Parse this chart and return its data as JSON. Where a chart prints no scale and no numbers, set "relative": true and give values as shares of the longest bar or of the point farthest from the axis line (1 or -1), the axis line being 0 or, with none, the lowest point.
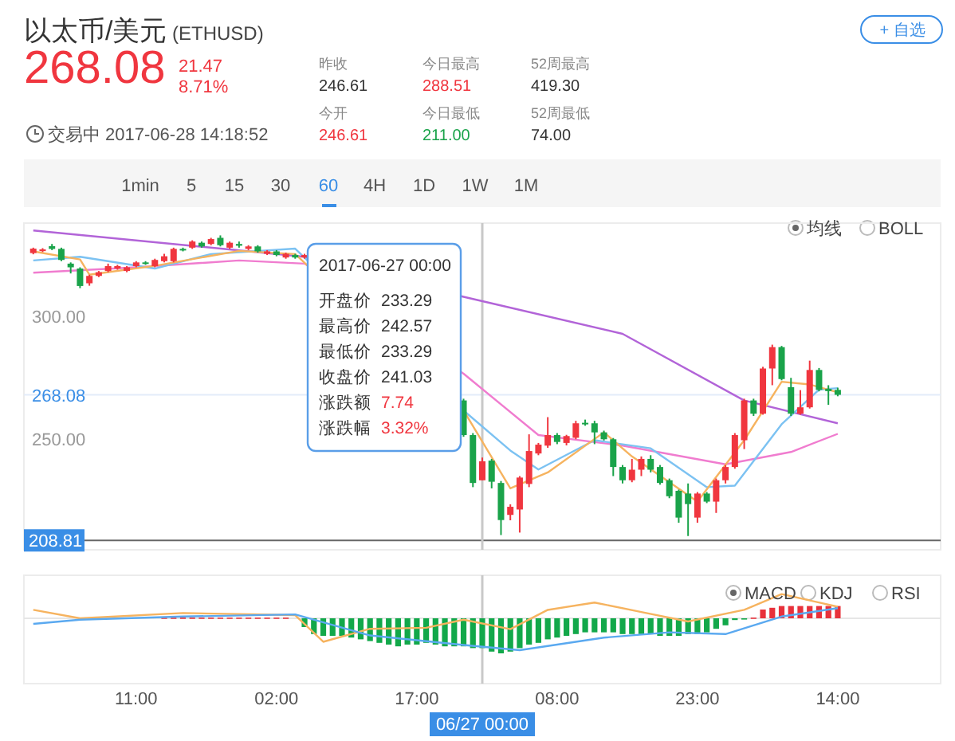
{
  "chart_data": [
    {
      "type": "candlestick",
      "title": "以太币/美元",
      "subtitle": "(ETHUSD)",
      "x": [
        "2017-06-25T00:00",
        "2017-06-25T01:00",
        "2017-06-25T02:00",
        "2017-06-25T03:00",
        "2017-06-25T04:00",
        "2017-06-25T05:00",
        "2017-06-25T06:00",
        "2017-06-25T07:00",
        "2017-06-25T08:00",
        "2017-06-25T09:00",
        "2017-06-25T10:00",
        "2017-06-25T11:00",
        "2017-06-25T12:00",
        "2017-06-25T13:00",
        "2017-06-25T14:00",
        "2017-06-25T15:00",
        "2017-06-25T16:00",
        "2017-06-25T17:00",
        "2017-06-25T18:00",
        "2017-06-25T19:00",
        "2017-06-25T20:00",
        "2017-06-25T21:00",
        "2017-06-25T22:00",
        "2017-06-25T23:00",
        "2017-06-26T00:00",
        "2017-06-26T01:00",
        "2017-06-26T02:00",
        "2017-06-26T03:00",
        "2017-06-26T04:00",
        "2017-06-26T05:00",
        "2017-06-26T22:00",
        "2017-06-26T23:00",
        "2017-06-27T00:00",
        "2017-06-27T01:00",
        "2017-06-27T02:00",
        "2017-06-27T03:00",
        "2017-06-27T04:00",
        "2017-06-27T05:00",
        "2017-06-27T06:00",
        "2017-06-27T07:00",
        "2017-06-27T08:00",
        "2017-06-27T09:00",
        "2017-06-27T10:00",
        "2017-06-27T11:00",
        "2017-06-27T12:00",
        "2017-06-27T13:00",
        "2017-06-27T14:00",
        "2017-06-27T15:00",
        "2017-06-27T16:00",
        "2017-06-27T17:00",
        "2017-06-27T18:00",
        "2017-06-27T19:00",
        "2017-06-27T20:00",
        "2017-06-27T21:00",
        "2017-06-27T22:00",
        "2017-06-27T23:00",
        "2017-06-28T00:00",
        "2017-06-28T01:00",
        "2017-06-28T02:00",
        "2017-06-28T03:00",
        "2017-06-28T04:00",
        "2017-06-28T05:00",
        "2017-06-28T06:00",
        "2017-06-28T07:00",
        "2017-06-28T08:00",
        "2017-06-28T09:00",
        "2017-06-28T10:00",
        "2017-06-28T11:00",
        "2017-06-28T12:00",
        "2017-06-28T13:00",
        "2017-06-28T14:00"
      ],
      "ohlc": [
        [
          325.8,
          328.0,
          325.3,
          327.6
        ],
        [
          326.6,
          327.8,
          326.2,
          327.3
        ],
        [
          328.6,
          329.5,
          327.0,
          327.5
        ],
        [
          327.5,
          328.0,
          322.5,
          323.0
        ],
        [
          321.5,
          322.0,
          317.5,
          320.0
        ],
        [
          319.5,
          320.0,
          311.5,
          312.4
        ],
        [
          313.5,
          317.0,
          312.5,
          316.5
        ],
        [
          316.5,
          318.5,
          316.0,
          318.0
        ],
        [
          318.5,
          321.5,
          318.0,
          320.5
        ],
        [
          319.5,
          321.0,
          319.0,
          320.5
        ],
        [
          318.5,
          320.5,
          318.0,
          320.0
        ],
        [
          320.5,
          322.5,
          320.0,
          322.0
        ],
        [
          322.0,
          322.5,
          321.0,
          321.5
        ],
        [
          320.5,
          323.5,
          320.0,
          323.0
        ],
        [
          322.5,
          325.5,
          322.0,
          324.5
        ],
        [
          322.5,
          328.0,
          322.0,
          327.5
        ],
        [
          327.5,
          328.0,
          326.5,
          327.0
        ],
        [
          328.0,
          331.0,
          327.5,
          330.5
        ],
        [
          330.0,
          330.5,
          328.0,
          328.5
        ],
        [
          329.5,
          332.0,
          329.0,
          331.5
        ],
        [
          332.0,
          333.0,
          328.5,
          329.0
        ],
        [
          328.0,
          330.5,
          327.5,
          330.0
        ],
        [
          329.5,
          330.5,
          328.0,
          328.8
        ],
        [
          327.5,
          329.0,
          327.0,
          328.5
        ],
        [
          328.5,
          329.0,
          326.0,
          326.5
        ],
        [
          325.5,
          327.0,
          325.0,
          326.5
        ],
        [
          326.5,
          327.0,
          324.5,
          325.0
        ],
        [
          324.0,
          326.0,
          323.5,
          325.5
        ],
        [
          325.0,
          325.5,
          323.5,
          324.0
        ],
        [
          324.0,
          325.5,
          323.5,
          325.0
        ],
        [
          265.8,
          266.5,
          251.0,
          251.7
        ],
        [
          251.7,
          252.5,
          230.5,
          232.2
        ],
        [
          233.29,
          242.57,
          233.29,
          241.03
        ],
        [
          241.3,
          242.0,
          230.0,
          232.7
        ],
        [
          232.2,
          233.0,
          211.0,
          217.1
        ],
        [
          219.2,
          223.5,
          217.0,
          222.5
        ],
        [
          221.4,
          235.0,
          212.0,
          234.4
        ],
        [
          231.8,
          252.0,
          230.5,
          245.2
        ],
        [
          244.2,
          248.5,
          243.5,
          247.8
        ],
        [
          247.4,
          259.0,
          246.5,
          251.7
        ],
        [
          251.7,
          252.5,
          248.0,
          248.9
        ],
        [
          248.5,
          251.8,
          247.5,
          251.3
        ],
        [
          250.6,
          257.5,
          250.0,
          256.5
        ],
        [
          256.7,
          258.0,
          255.5,
          256.1
        ],
        [
          256.5,
          257.5,
          248.0,
          252.8
        ],
        [
          252.8,
          253.5,
          249.5,
          250.0
        ],
        [
          250.0,
          250.5,
          235.0,
          238.7
        ],
        [
          238.7,
          239.5,
          232.0,
          233.3
        ],
        [
          233.3,
          242.0,
          232.5,
          237.6
        ],
        [
          237.6,
          243.0,
          235.0,
          242.0
        ],
        [
          242.0,
          243.5,
          236.5,
          237.6
        ],
        [
          238.7,
          239.5,
          231.5,
          232.2
        ],
        [
          233.3,
          234.0,
          226.0,
          226.8
        ],
        [
          229.0,
          229.5,
          216.0,
          218.1
        ],
        [
          227.9,
          232.0,
          210.6,
          223.6
        ],
        [
          218.1,
          228.5,
          216.0,
          227.9
        ],
        [
          227.9,
          228.5,
          224.0,
          224.6
        ],
        [
          224.6,
          234.0,
          220.0,
          233.3
        ],
        [
          233.3,
          239.5,
          232.0,
          238.7
        ],
        [
          238.7,
          252.5,
          238.0,
          251.7
        ],
        [
          249.6,
          266.5,
          246.0,
          265.8
        ],
        [
          265.8,
          266.5,
          259.5,
          260.4
        ],
        [
          260.4,
          279.5,
          260.0,
          278.8
        ],
        [
          278.8,
          288.51,
          272.0,
          287.5
        ],
        [
          287.5,
          288.0,
          274.0,
          274.5
        ],
        [
          271.2,
          275.0,
          259.5,
          260.4
        ],
        [
          260.4,
          270.0,
          260.0,
          263.0
        ],
        [
          263.0,
          282.0,
          262.5,
          278.2
        ],
        [
          278.2,
          279.0,
          269.5,
          270.1
        ],
        [
          270.5,
          272.0,
          264.0,
          269.6
        ],
        [
          270.1,
          271.0,
          267.5,
          268.08
        ]
      ],
      "series": [
        {
          "type": "line",
          "color": "#b264d8",
          "x": [
            "2017-06-25T00:00",
            "2017-06-26T05:00",
            "2017-06-26T22:00",
            "2017-06-27T15:00",
            "2017-06-28T04:00",
            "2017-06-28T14:00"
          ],
          "values": [
            335,
            324.3,
            308,
            292.9,
            265.8,
            256.5
          ]
        },
        {
          "type": "line",
          "color": "#f07ccf",
          "x": [
            "2017-06-25T00:00",
            "2017-06-25T11:00",
            "2017-06-25T22:00",
            "2017-06-26T05:00",
            "2017-06-26T22:00",
            "2017-06-27T06:00",
            "2017-06-27T15:00",
            "2017-06-28T02:00",
            "2017-06-28T09:00",
            "2017-06-28T14:00"
          ],
          "values": [
            317.8,
            320,
            322.8,
            321.5,
            276.7,
            251.7,
            247.4,
            239.8,
            244.8,
            252.2
          ]
        },
        {
          "type": "line",
          "color": "#7cc2f2",
          "x": [
            "2017-06-25T00:00",
            "2017-06-25T05:00",
            "2017-06-25T13:00",
            "2017-06-25T19:00",
            "2017-06-26T04:00",
            "2017-06-26T22:00",
            "2017-06-27T03:00",
            "2017-06-27T06:00",
            "2017-06-27T12:00",
            "2017-06-27T18:00",
            "2017-06-28T00:00",
            "2017-06-28T03:00",
            "2017-06-28T08:00",
            "2017-06-28T12:00",
            "2017-06-28T14:00"
          ],
          "values": [
            322.8,
            324.3,
            319.5,
            325.4,
            327.6,
            261.7,
            245.4,
            237.7,
            249.6,
            246.3,
            230.5,
            231.1,
            256.1,
            270.2,
            270.8
          ]
        },
        {
          "type": "line",
          "color": "#f6b35f",
          "x": [
            "2017-06-25T00:00",
            "2017-06-25T05:00",
            "2017-06-25T06:00",
            "2017-06-25T13:00",
            "2017-06-25T22:00",
            "2017-06-26T04:00",
            "2017-06-26T22:00",
            "2017-06-27T03:00",
            "2017-06-27T07:00",
            "2017-06-27T13:00",
            "2017-06-27T16:00",
            "2017-06-27T23:00",
            "2017-06-28T04:00",
            "2017-06-28T08:00",
            "2017-06-28T11:00",
            "2017-06-28T14:00"
          ],
          "values": [
            326.5,
            323.2,
            317,
            320.6,
            326.7,
            325.4,
            261.7,
            230,
            236.5,
            252.8,
            243,
            224.6,
            249.6,
            273.4,
            272.3,
            269.1
          ]
        }
      ],
      "xlim": [
        "2017-06-24T23:00",
        "2017-06-29T01:00"
      ],
      "ylim": [
        205,
        338
      ],
      "yticks": [
        {
          "value": 300,
          "label": "300.00"
        },
        {
          "value": 250,
          "label": "250.00"
        }
      ],
      "tick_labels": "y",
      "ref_lines": [
        {
          "axis": "y",
          "value": 268.08,
          "label": "268.08",
          "color": "#e3ecfa"
        },
        {
          "axis": "y",
          "value": 208.81,
          "label": "208.81",
          "color": "#666666"
        },
        {
          "axis": "x",
          "value": "2017-06-27T00:00",
          "color": "#c8c8c8"
        }
      ],
      "annotations": [
        "268.08",
        "21.47",
        "8.71%",
        "昨收",
        "246.61",
        "今日最高",
        "288.51",
        "52周最高",
        "419.30",
        "今开",
        "246.61",
        "今日最低",
        "211.00",
        "52周最低",
        "74.00",
        "交易中 2017-06-28 14:18:52",
        "+ 自选",
        "1min",
        "5",
        "15",
        "30",
        "60",
        "4H",
        "1D",
        "1W",
        "1M",
        "均线",
        "BOLL",
        "2017-06-27 00:00",
        "开盘价",
        "233.29",
        "最高价",
        "242.57",
        "最低价",
        "233.29",
        "收盘价",
        "241.03",
        "涨跌额",
        "7.74",
        "涨跌幅",
        "3.32%"
      ]
    },
    {
      "type": "bar",
      "relative": true,
      "series": [
        {
          "color": "#e8313b",
          "x": [
            "2017-06-25T14:00",
            "2017-06-25T15:00",
            "2017-06-25T16:00",
            "2017-06-25T17:00",
            "2017-06-25T18:00",
            "2017-06-25T19:00",
            "2017-06-25T20:00",
            "2017-06-25T21:00",
            "2017-06-25T22:00",
            "2017-06-25T23:00",
            "2017-06-26T00:00",
            "2017-06-26T01:00",
            "2017-06-26T02:00",
            "2017-06-26T03:00",
            "2017-06-28T05:00",
            "2017-06-28T06:00",
            "2017-06-28T07:00",
            "2017-06-28T08:00",
            "2017-06-28T09:00",
            "2017-06-28T10:00",
            "2017-06-28T11:00",
            "2017-06-28T12:00",
            "2017-06-28T13:00",
            "2017-06-28T14:00"
          ],
          "values": [
            0.02,
            0.02,
            0.02,
            0.02,
            0.02,
            0.02,
            0.02,
            0.02,
            0.02,
            0.02,
            0.02,
            0.02,
            0.02,
            0.02,
            0.02,
            0.25,
            0.3,
            0.35,
            0.35,
            0.35,
            0.35,
            0.35,
            0.35,
            0.35
          ]
        },
        {
          "color": "#12a84a",
          "x": [
            "2017-06-26T05:00",
            "2017-06-26T06:00",
            "2017-06-26T07:00",
            "2017-06-26T08:00",
            "2017-06-26T09:00",
            "2017-06-26T10:00",
            "2017-06-26T11:00",
            "2017-06-26T12:00",
            "2017-06-26T13:00",
            "2017-06-26T14:00",
            "2017-06-26T15:00",
            "2017-06-26T16:00",
            "2017-06-26T17:00",
            "2017-06-26T18:00",
            "2017-06-26T19:00",
            "2017-06-26T20:00",
            "2017-06-26T21:00",
            "2017-06-26T22:00",
            "2017-06-26T23:00",
            "2017-06-27T00:00",
            "2017-06-27T01:00",
            "2017-06-27T02:00",
            "2017-06-27T03:00",
            "2017-06-27T04:00",
            "2017-06-27T05:00",
            "2017-06-27T06:00",
            "2017-06-27T07:00",
            "2017-06-27T08:00",
            "2017-06-27T09:00",
            "2017-06-27T10:00",
            "2017-06-27T11:00",
            "2017-06-27T12:00",
            "2017-06-27T13:00",
            "2017-06-27T14:00",
            "2017-06-27T15:00",
            "2017-06-27T16:00",
            "2017-06-27T17:00",
            "2017-06-27T18:00",
            "2017-06-27T19:00",
            "2017-06-27T20:00",
            "2017-06-27T21:00",
            "2017-06-27T22:00",
            "2017-06-27T23:00",
            "2017-06-28T00:00",
            "2017-06-28T01:00",
            "2017-06-28T02:00",
            "2017-06-28T03:00",
            "2017-06-28T04:00"
          ],
          "values": [
            -0.25,
            -0.45,
            -0.5,
            -0.5,
            -0.5,
            -0.55,
            -0.6,
            -0.65,
            -0.7,
            -0.75,
            -0.8,
            -0.75,
            -0.75,
            -0.7,
            -0.75,
            -0.8,
            -0.8,
            -0.8,
            -0.85,
            -0.85,
            -0.95,
            -1,
            -0.95,
            -0.85,
            -0.75,
            -0.7,
            -0.6,
            -0.55,
            -0.5,
            -0.45,
            -0.4,
            -0.4,
            -0.4,
            -0.4,
            -0.45,
            -0.45,
            -0.45,
            -0.45,
            -0.5,
            -0.5,
            -0.5,
            -0.45,
            -0.45,
            -0.4,
            -0.3,
            -0.2,
            -0.05,
            -0.02
          ]
        },
        {
          "type": "line",
          "color": "#f6b35f",
          "x": [
            "2017-06-25T00:00",
            "2017-06-25T05:00",
            "2017-06-25T16:00",
            "2017-06-26T04:00",
            "2017-06-26T07:00",
            "2017-06-26T12:00",
            "2017-06-26T18:00",
            "2017-06-26T22:00",
            "2017-06-27T03:00",
            "2017-06-27T07:00",
            "2017-06-27T12:00",
            "2017-06-27T17:00",
            "2017-06-27T22:00",
            "2017-06-28T04:00",
            "2017-06-28T08:00",
            "2017-06-28T14:00"
          ],
          "values": [
            0.24,
            0,
            0.15,
            0.09,
            -0.67,
            -0.3,
            -0.27,
            -0.04,
            -0.31,
            0.24,
            0.45,
            0.18,
            -0.09,
            0.24,
            0.69,
            0.33
          ]
        },
        {
          "type": "line",
          "color": "#5aa9f0",
          "x": [
            "2017-06-25T00:00",
            "2017-06-25T05:00",
            "2017-06-25T16:00",
            "2017-06-26T04:00",
            "2017-06-26T12:00",
            "2017-06-26T22:00",
            "2017-06-27T04:00",
            "2017-06-27T13:00",
            "2017-06-27T20:00",
            "2017-06-28T02:00",
            "2017-06-28T08:00",
            "2017-06-28T14:00"
          ],
          "values": [
            -0.16,
            -0.04,
            0.05,
            0.11,
            -0.49,
            -0.76,
            -0.91,
            -0.55,
            -0.4,
            -0.45,
            0.05,
            0.29
          ]
        }
      ],
      "xlim": [
        "2017-06-24T23:00",
        "2017-06-29T01:00"
      ],
      "xticks": [
        {
          "value": "2017-06-25T11:00",
          "label": "11:00"
        },
        {
          "value": "2017-06-26T02:00",
          "label": "02:00"
        },
        {
          "value": "2017-06-26T17:00",
          "label": "17:00"
        },
        {
          "value": "2017-06-27T08:00",
          "label": "08:00"
        },
        {
          "value": "2017-06-27T23:00",
          "label": "23:00"
        },
        {
          "value": "2017-06-28T14:00",
          "label": "14:00"
        }
      ],
      "tick_labels": "x",
      "ref_lines": [
        {
          "axis": "x",
          "value": "2017-06-27T00:00",
          "label": "06/27 00:00",
          "color": "#c8c8c8"
        }
      ],
      "annotations": [
        "MACD",
        "KDJ",
        "RSI"
      ]
    }
  ]
}
